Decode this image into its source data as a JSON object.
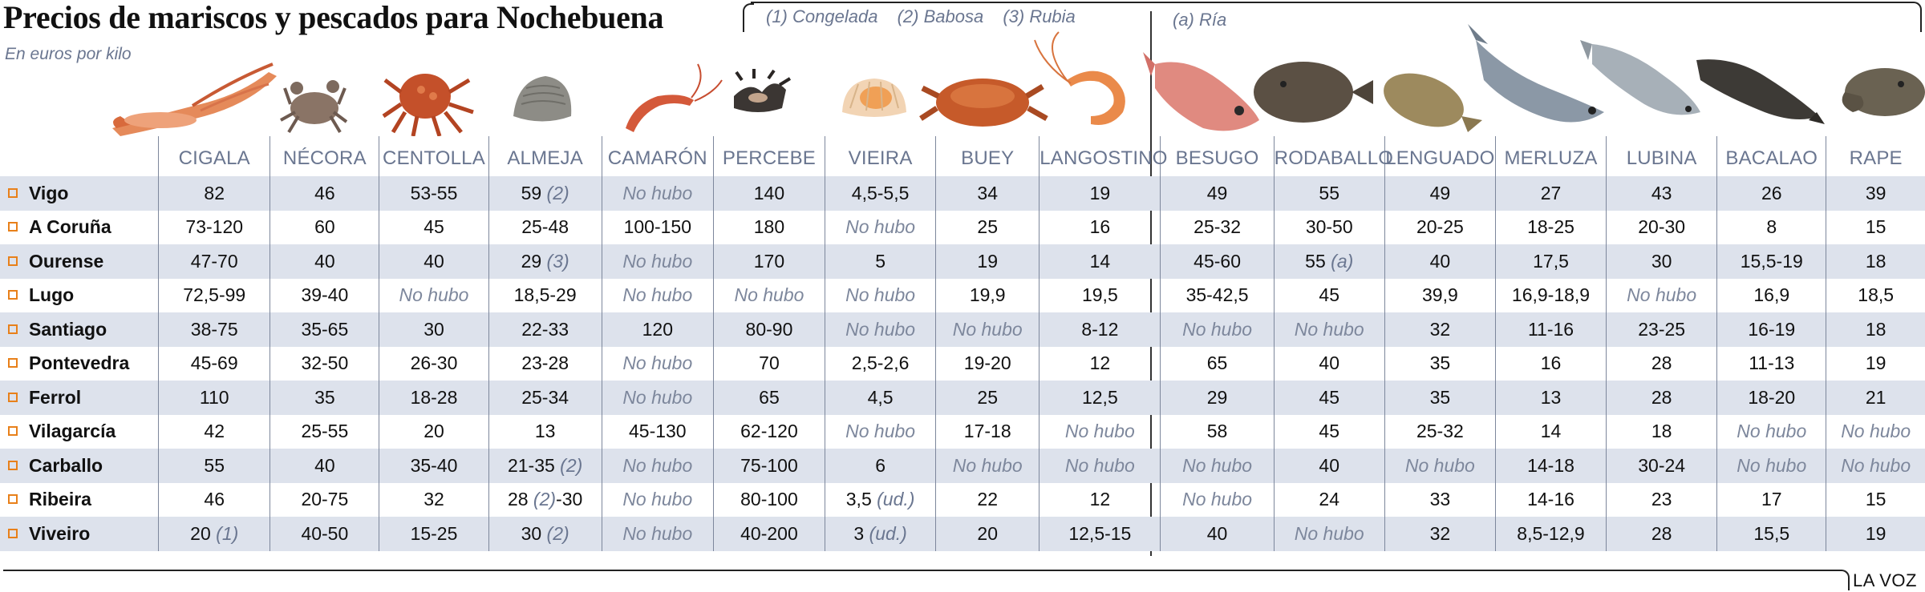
{
  "title": "Precios de mariscos y  pescados para Nochebuena",
  "subtitle": "En euros por kilo",
  "legend": [
    "(1) Congelada",
    "(2) Babosa",
    "(3) Rubia"
  ],
  "ria_note": "(a) Ría",
  "credit": "LA VOZ",
  "chart_data": {
    "type": "table",
    "title": "Precios de mariscos y  pescados para Nochebuena",
    "subtitle": "En euros por kilo",
    "columns": [
      "CIGALA",
      "NÉCORA",
      "CENTOLLA",
      "ALMEJA",
      "CAMARÓN",
      "PERCEBE",
      "VIEIRA",
      "BUEY",
      "LANGOSTINO",
      "BESUGO",
      "RODABALLO",
      "LENGUADO",
      "MERLUZA",
      "LUBINA",
      "BACALAO",
      "RAPE"
    ],
    "rows": [
      {
        "city": "Vigo",
        "values": [
          "82",
          "46",
          "53-55",
          "59|(2)",
          "No hubo",
          "140",
          "4,5-5,5",
          "34",
          "19",
          "49",
          "55",
          "49",
          "27",
          "43",
          "26",
          "39"
        ]
      },
      {
        "city": "A Coruña",
        "values": [
          "73-120",
          "60",
          "45",
          "25-48",
          "100-150",
          "180",
          "No hubo",
          "25",
          "16",
          "25-32",
          "30-50",
          "20-25",
          "18-25",
          "20-30",
          "8",
          "15"
        ]
      },
      {
        "city": "Ourense",
        "values": [
          "47-70",
          "40",
          "40",
          "29|(3)",
          "No hubo",
          "170",
          "5",
          "19",
          "14",
          "45-60",
          "55|(a)",
          "40",
          "17,5",
          "30",
          "15,5-19",
          "18"
        ]
      },
      {
        "city": "Lugo",
        "values": [
          "72,5-99",
          "39-40",
          "No hubo",
          "18,5-29",
          "No hubo",
          "No hubo",
          "No hubo",
          "19,9",
          "19,5",
          "35-42,5",
          "45",
          "39,9",
          "16,9-18,9",
          "No hubo",
          "16,9",
          "18,5"
        ]
      },
      {
        "city": "Santiago",
        "values": [
          "38-75",
          "35-65",
          "30",
          "22-33",
          "120",
          "80-90",
          "No hubo",
          "No hubo",
          "8-12",
          "No hubo",
          "No hubo",
          "32",
          "11-16",
          "23-25",
          "16-19",
          "18"
        ]
      },
      {
        "city": "Pontevedra",
        "values": [
          "45-69",
          "32-50",
          "26-30",
          "23-28",
          "No hubo",
          "70",
          "2,5-2,6",
          "19-20",
          "12",
          "65",
          "40",
          "35",
          "16",
          "28",
          "11-13",
          "19"
        ]
      },
      {
        "city": "Ferrol",
        "values": [
          "110",
          "35",
          "18-28",
          "25-34",
          "No hubo",
          "65",
          "4,5",
          "25",
          "12,5",
          "29",
          "45",
          "35",
          "13",
          "28",
          "18-20",
          "21"
        ]
      },
      {
        "city": "Vilagarcía",
        "values": [
          "42",
          "25-55",
          "20",
          "13",
          "45-130",
          "62-120",
          "No hubo",
          "17-18",
          "No hubo",
          "58",
          "45",
          "25-32",
          "14",
          "18",
          "No hubo",
          "No hubo"
        ]
      },
      {
        "city": "Carballo",
        "values": [
          "55",
          "40",
          "35-40",
          "21-35|(2)",
          "No hubo",
          "75-100",
          "6",
          "No hubo",
          "No hubo",
          "No hubo",
          "40",
          "No hubo",
          "14-18",
          "30-24",
          "No hubo",
          "No hubo"
        ]
      },
      {
        "city": "Ribeira",
        "values": [
          "46",
          "20-75",
          "32",
          "28|(2)|-30",
          "No hubo",
          "80-100",
          "3,5|(ud.)",
          "22",
          "12",
          "No hubo",
          "24",
          "33",
          "14-16",
          "23",
          "17",
          "15"
        ]
      },
      {
        "city": "Viveiro",
        "values": [
          "20|(1)",
          "40-50",
          "15-25",
          "30|(2)",
          "No hubo",
          "40-200",
          "3|(ud.)",
          "20",
          "12,5-15",
          "40",
          "No hubo",
          "32",
          "8,5-12,9",
          "28",
          "15,5",
          "19"
        ]
      }
    ]
  },
  "colors": {
    "accent": "#e8801a",
    "row_band": "#dde2ec",
    "header_text": "#6a7690",
    "no_data": "#7d879c"
  },
  "icons": [
    "cigala-photo",
    "necora-photo",
    "centolla-photo",
    "almeja-photo",
    "camaron-photo",
    "percebe-photo",
    "vieira-photo",
    "buey-photo",
    "langostino-photo",
    "besugo-photo",
    "rodaballo-photo",
    "lenguado-photo",
    "merluza-photo",
    "lubina-photo",
    "bacalao-photo",
    "rape-photo"
  ]
}
